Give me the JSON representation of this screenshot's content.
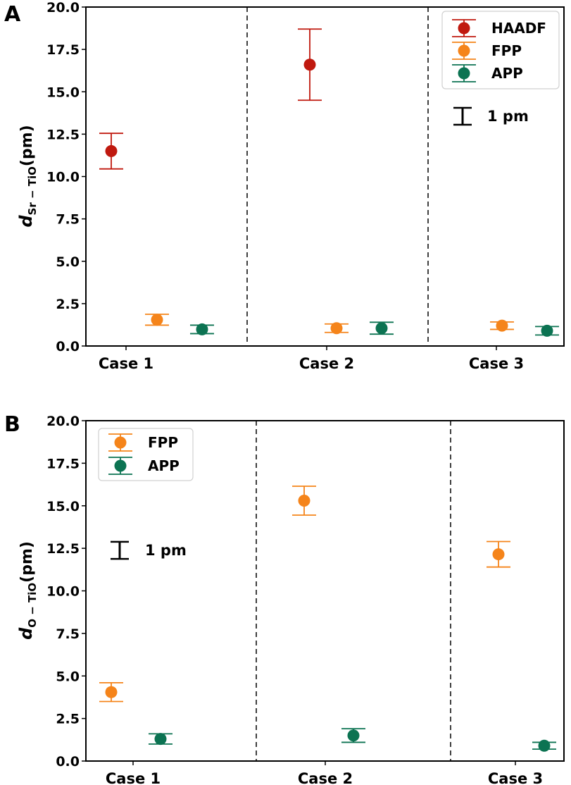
{
  "chart_data": [
    {
      "panel_label": "A",
      "type": "scatter",
      "categories": [
        "Case 1",
        "Case 2",
        "Case 3"
      ],
      "ylabel": {
        "main": "d",
        "subscript": "Sr − TiO",
        "unit": "(pm)"
      },
      "ylim": [
        0,
        20
      ],
      "yticks": [
        "0.0",
        "2.5",
        "5.0",
        "7.5",
        "10.0",
        "12.5",
        "15.0",
        "17.5",
        "20.0"
      ],
      "legend_position": "top-right",
      "scale_bar_label": "1 pm",
      "series": [
        {
          "name": "HAADF",
          "color": "#c0190f",
          "values": [
            11.5,
            16.6,
            null
          ],
          "err": [
            1.05,
            2.1,
            null
          ]
        },
        {
          "name": "FPP",
          "color": "#f5841a",
          "values": [
            1.55,
            1.05,
            1.2
          ],
          "err": [
            0.32,
            0.25,
            0.22
          ]
        },
        {
          "name": "APP",
          "color": "#0c7352",
          "values": [
            0.98,
            1.05,
            0.9
          ],
          "err": [
            0.25,
            0.35,
            0.25
          ]
        }
      ]
    },
    {
      "panel_label": "B",
      "type": "scatter",
      "categories": [
        "Case 1",
        "Case 2",
        "Case 3"
      ],
      "ylabel": {
        "main": "d",
        "subscript": "O − TiO",
        "unit": "(pm)"
      },
      "ylim": [
        0,
        20
      ],
      "yticks": [
        "0.0",
        "2.5",
        "5.0",
        "7.5",
        "10.0",
        "12.5",
        "15.0",
        "17.5",
        "20.0"
      ],
      "legend_position": "top-left",
      "scale_bar_label": "1 pm",
      "series": [
        {
          "name": "FPP",
          "color": "#f5841a",
          "values": [
            4.05,
            15.3,
            12.15
          ],
          "err": [
            0.55,
            0.85,
            0.75
          ]
        },
        {
          "name": "APP",
          "color": "#0c7352",
          "values": [
            1.3,
            1.5,
            0.9
          ],
          "err": [
            0.3,
            0.4,
            0.2
          ]
        }
      ]
    }
  ]
}
